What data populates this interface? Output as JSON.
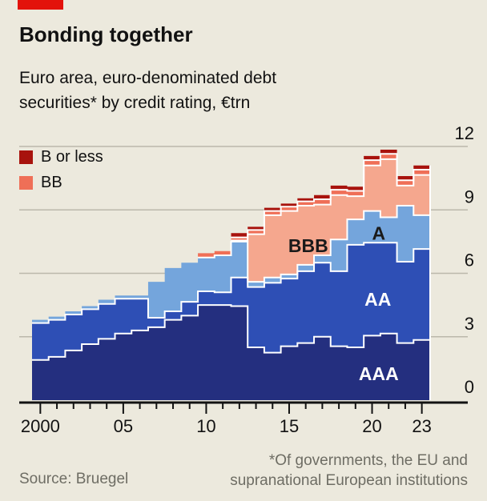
{
  "header": {
    "title": "Bonding together",
    "subtitle_line1": "Euro area, euro-denominated debt",
    "subtitle_line2": "securities* by credit rating, €trn"
  },
  "legend": [
    {
      "label": "B or less",
      "color": "#A8130D"
    },
    {
      "label": "BB",
      "color": "#EF6F57"
    }
  ],
  "footer": {
    "source": "Source: Bruegel",
    "note_line1": "*Of governments, the EU and",
    "note_line2": "supranational European institutions"
  },
  "colors": {
    "background": "#ECE9DD",
    "tag_red": "#E3120B",
    "grid": "#BBB8AB",
    "axis": "#121212",
    "boundary_white": "#FFFFFF",
    "text_gray": "#6E6D64"
  },
  "chart_data": {
    "type": "area",
    "stacked": true,
    "step": true,
    "unit": "€trn",
    "ylim": [
      0,
      12
    ],
    "grid": true,
    "legend_position": "top-left",
    "x": [
      2000,
      2001,
      2002,
      2003,
      2004,
      2005,
      2006,
      2007,
      2008,
      2009,
      2010,
      2011,
      2012,
      2013,
      2014,
      2015,
      2016,
      2017,
      2018,
      2019,
      2020,
      2021,
      2022,
      2023
    ],
    "series": [
      {
        "name": "AAA",
        "color": "#242F7F",
        "values": [
          1.9,
          2.05,
          2.35,
          2.65,
          2.9,
          3.15,
          3.3,
          3.45,
          3.8,
          4.0,
          4.5,
          4.5,
          4.45,
          2.5,
          2.25,
          2.55,
          2.7,
          3.0,
          2.55,
          2.5,
          3.05,
          3.15,
          2.7,
          2.85
        ]
      },
      {
        "name": "AA",
        "color": "#2E4FB5",
        "values": [
          1.75,
          1.75,
          1.7,
          1.65,
          1.65,
          1.65,
          1.5,
          0.45,
          0.4,
          0.65,
          0.65,
          0.6,
          1.35,
          2.85,
          3.3,
          3.2,
          3.4,
          3.5,
          3.55,
          4.85,
          4.4,
          4.3,
          3.85,
          4.3
        ]
      },
      {
        "name": "A",
        "color": "#74A5DC",
        "values": [
          0.15,
          0.15,
          0.15,
          0.15,
          0.2,
          0.15,
          0.15,
          1.7,
          2.05,
          1.85,
          1.6,
          1.75,
          1.7,
          0.25,
          0.25,
          0.2,
          0.3,
          0.35,
          1.5,
          1.2,
          1.5,
          1.2,
          2.65,
          1.6
        ]
      },
      {
        "name": "BBB",
        "color": "#F5A78E",
        "values": [
          0,
          0,
          0,
          0,
          0,
          0,
          0,
          0,
          0,
          0,
          0,
          0,
          0.05,
          2.25,
          2.95,
          3.0,
          2.8,
          2.4,
          2.1,
          1.1,
          2.15,
          2.75,
          0.95,
          1.9
        ]
      },
      {
        "name": "BB",
        "color": "#EF6F57",
        "values": [
          0,
          0,
          0,
          0,
          0,
          0,
          0,
          0,
          0,
          0,
          0.2,
          0.2,
          0.15,
          0.2,
          0.2,
          0.2,
          0.2,
          0.25,
          0.25,
          0.25,
          0.25,
          0.25,
          0.25,
          0.25
        ]
      },
      {
        "name": "B or less",
        "color": "#A8130D",
        "values": [
          0,
          0,
          0,
          0,
          0,
          0,
          0,
          0,
          0,
          0,
          0,
          0,
          0.2,
          0.15,
          0.15,
          0.15,
          0.15,
          0.2,
          0.2,
          0.2,
          0.2,
          0.2,
          0.2,
          0.2
        ]
      }
    ],
    "yticks": [
      {
        "value": 0,
        "label": "0"
      },
      {
        "value": 3,
        "label": "3"
      },
      {
        "value": 6,
        "label": "6"
      },
      {
        "value": 9,
        "label": "9"
      },
      {
        "value": 12,
        "label": "12"
      }
    ],
    "xticks": [
      {
        "year": 2000,
        "label": "2000"
      },
      {
        "year": 2005,
        "label": "05"
      },
      {
        "year": 2010,
        "label": "10"
      },
      {
        "year": 2015,
        "label": "15"
      },
      {
        "year": 2020,
        "label": "20"
      },
      {
        "year": 2023,
        "label": "23"
      }
    ],
    "area_labels": [
      {
        "text": "BBB",
        "year_offset": 16.65,
        "value": 7.3,
        "color": "#1a1a1a"
      },
      {
        "text": "A",
        "year_offset": 20.9,
        "value": 7.9,
        "color": "#1a1a1a"
      },
      {
        "text": "AA",
        "year_offset": 20.85,
        "value": 4.77,
        "color": "#ffffff"
      },
      {
        "text": "AAA",
        "year_offset": 20.9,
        "value": 1.25,
        "color": "#ffffff"
      }
    ]
  }
}
